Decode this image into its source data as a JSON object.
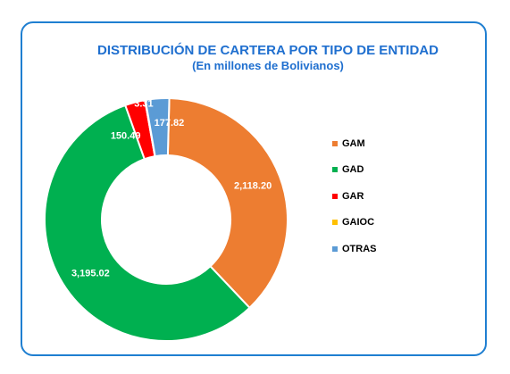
{
  "chart_data": {
    "type": "pie",
    "variant": "donut",
    "title": "DISTRIBUCIÓN DE CARTERA POR TIPO DE ENTIDAD",
    "subtitle": "(En millones de Bolivianos)",
    "categories": [
      "GAM",
      "GAD",
      "GAR",
      "GAIOC",
      "OTRAS"
    ],
    "values": [
      2118.2,
      3195.02,
      150.49,
      3.31,
      177.82
    ],
    "data_labels": [
      "2,118.20",
      "3,195.02",
      "150.49",
      "3.31",
      "177.82"
    ],
    "colors": [
      "#ed7d31",
      "#00b050",
      "#ff0000",
      "#ffc000",
      "#5b9bd5"
    ],
    "legend_position": "right"
  }
}
